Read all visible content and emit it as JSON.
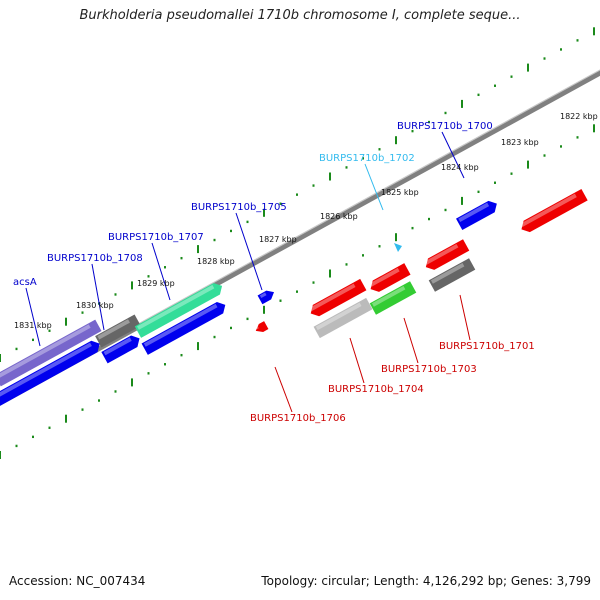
{
  "title": "Burkholderia pseudomallei 1710b chromosome I, complete seque...",
  "footer": {
    "accession": "Accession: NC_007434",
    "summary": "Topology: circular; Length: 4,126,292 bp; Genes: 3,799"
  },
  "scale_labels": [
    "1831 kbp",
    "1830 kbp",
    "1829 kbp",
    "1828 kbp",
    "1827 kbp",
    "1826 kbp",
    "1825 kbp",
    "1824 kbp",
    "1823 kbp",
    "1822 kbp"
  ],
  "gene_labels": [
    {
      "text": "acsA",
      "color": "#0000cc"
    },
    {
      "text": "BURPS1710b_1708",
      "color": "#0000cc"
    },
    {
      "text": "BURPS1710b_1707",
      "color": "#0000cc"
    },
    {
      "text": "BURPS1710b_1705",
      "color": "#0000cc"
    },
    {
      "text": "BURPS1710b_1702",
      "color": "#33bbee"
    },
    {
      "text": "BURPS1710b_1700",
      "color": "#0000cc"
    },
    {
      "text": "BURPS1710b_1701",
      "color": "#cc0000"
    },
    {
      "text": "BURPS1710b_1703",
      "color": "#cc0000"
    },
    {
      "text": "BURPS1710b_1704",
      "color": "#cc0000"
    },
    {
      "text": "BURPS1710b_1706",
      "color": "#cc0000"
    }
  ],
  "colors": {
    "forward_gene": "#0000ee",
    "reverse_gene": "#ee0000",
    "backbone": "#808080",
    "tick": "#1a8a1a",
    "purple_gene": "#7766cc",
    "green_gene": "#33dd99",
    "green2_gene": "#33cc33",
    "gray_gene": "#666666",
    "light_gray_gene": "#bbbbbb",
    "cyan_gene": "#33bbee"
  }
}
